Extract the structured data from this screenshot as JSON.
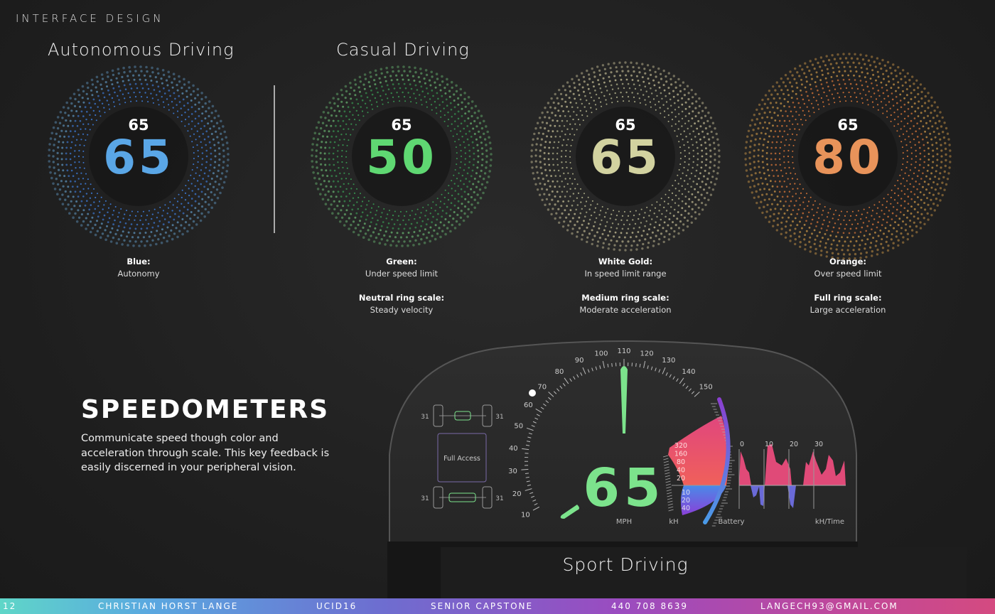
{
  "header": "INTERFACE DESIGN",
  "sections": {
    "autonomous": "Autonomous Driving",
    "casual": "Casual Driving",
    "sport": "Sport Driving"
  },
  "speedos": [
    {
      "limit": "65",
      "speed": "65",
      "color": "#5aa6e6",
      "ring": [
        "#3f7fe0",
        "#6fb4e8"
      ],
      "scale": 0.85,
      "label": "Blue:",
      "desc": "Autonomy"
    },
    {
      "limit": "65",
      "speed": "50",
      "color": "#5fd872",
      "ring": [
        "#3aa055",
        "#7bdc86"
      ],
      "scale": 0.85,
      "label": "Green:",
      "desc": "Under speed limit",
      "scale_label": "Neutral ring scale:",
      "scale_desc": "Steady velocity"
    },
    {
      "limit": "65",
      "speed": "65",
      "color": "#d2d2a0",
      "ring": [
        "#b8b890",
        "#e8dfae"
      ],
      "scale": 0.92,
      "label": "White Gold:",
      "desc": "In speed limit range",
      "scale_label": "Medium ring scale:",
      "scale_desc": "Moderate acceleration"
    },
    {
      "limit": "65",
      "speed": "80",
      "color": "#e8935a",
      "ring": [
        "#e07a3a",
        "#f0b050"
      ],
      "scale": 1.0,
      "label": "Orange:",
      "desc": "Over speed limit",
      "scale_label": "Full ring scale:",
      "scale_desc": "Large acceleration"
    }
  ],
  "title": "SPEEDOMETERS",
  "description": "Communicate speed though color and acceleration through scale. This key feedback is easily discerned in your peripheral vision.",
  "dashboard": {
    "speed": "65",
    "speed_unit": "MPH",
    "kh_unit": "kH",
    "battery_label": "Battery",
    "graph_label": "kH/Time",
    "speed_ticks": [
      "10",
      "20",
      "30",
      "40",
      "50",
      "60",
      "70",
      "80",
      "90",
      "100",
      "110",
      "120",
      "130",
      "140",
      "150"
    ],
    "kh_up": [
      "320",
      "160",
      "80",
      "40",
      "20"
    ],
    "kh_down": [
      "10",
      "20",
      "40"
    ],
    "graph_ticks": [
      "0",
      "10",
      "20",
      "30"
    ],
    "tire_pressure": [
      "31",
      "31",
      "31",
      "31"
    ],
    "mode": "Full Access",
    "accent": "#7ce38c"
  },
  "footer": {
    "page": "12",
    "name": "CHRISTIAN HORST LANGE",
    "event": "UCID16",
    "course": "SENIOR CAPSTONE",
    "phone": "440 708 8639",
    "email": "LANGECH93@GMAIL.COM"
  }
}
